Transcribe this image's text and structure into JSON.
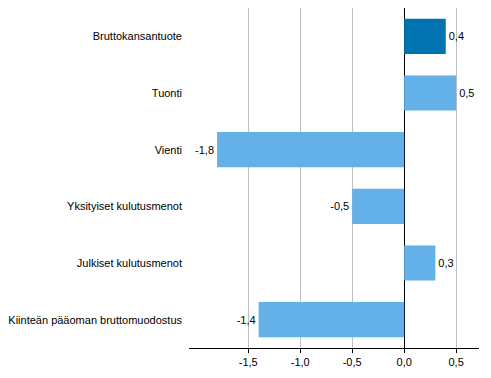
{
  "chart_data": {
    "type": "bar",
    "orientation": "horizontal",
    "categories": [
      "Bruttokansantuote",
      "Tuonti",
      "Vienti",
      "Yksityiset kulutusmenot",
      "Julkiset kulutusmenot",
      "Kiinteän pääoman bruttomuodostus"
    ],
    "values": [
      0.4,
      0.5,
      -1.8,
      -0.5,
      0.3,
      -1.4
    ],
    "value_labels": [
      "0,4",
      "0,5",
      "-1,8",
      "-0,5",
      "0,3",
      "-1,4"
    ],
    "colors": [
      "#0073b0",
      "#64b0e8",
      "#64b0e8",
      "#64b0e8",
      "#64b0e8",
      "#64b0e8"
    ],
    "data_labels": true,
    "xlim": [
      -2.07,
      0.72
    ],
    "xticks": [
      {
        "value": -1.5,
        "label": "-1,5"
      },
      {
        "value": -1,
        "label": "-1,0"
      },
      {
        "value": -0.5,
        "label": "-0,5"
      },
      {
        "value": 0,
        "label": "0,0"
      },
      {
        "value": 0.5,
        "label": "0,5"
      }
    ],
    "grid": true
  }
}
